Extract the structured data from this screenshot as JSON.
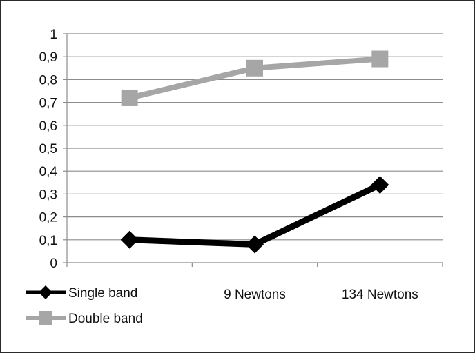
{
  "chart_data": {
    "type": "line",
    "categories": [
      "",
      "9 Newtons",
      "134 Newtons"
    ],
    "series": [
      {
        "name": "Single band",
        "values": [
          0.1,
          0.08,
          0.34
        ],
        "color": "#000000",
        "marker": "diamond"
      },
      {
        "name": "Double band",
        "values": [
          0.72,
          0.85,
          0.89
        ],
        "color": "#a6a6a6",
        "marker": "square"
      }
    ],
    "ylim": [
      0,
      1
    ],
    "y_ticks": [
      0,
      0.1,
      0.2,
      0.3,
      0.4,
      0.5,
      0.6,
      0.7,
      0.8,
      0.9,
      1
    ],
    "y_tick_labels": [
      "0",
      "0,1",
      "0,2",
      "0,3",
      "0,4",
      "0,5",
      "0,6",
      "0,7",
      "0,8",
      "0,9",
      "1"
    ],
    "grid": true,
    "legend_position": "bottom-left",
    "title": "",
    "xlabel": "",
    "ylabel": ""
  }
}
